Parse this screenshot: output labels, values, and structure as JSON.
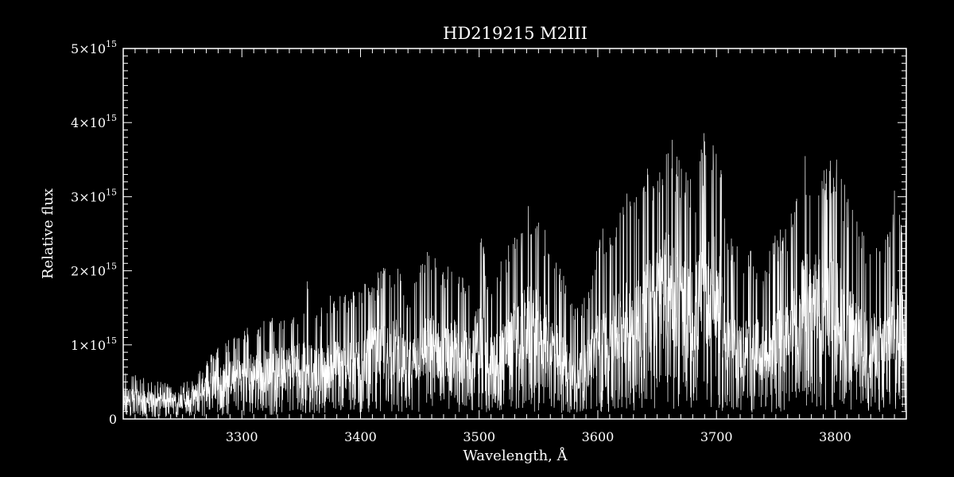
{
  "chart_data": {
    "type": "line",
    "title": "HD219215   M2III",
    "xlabel": "Wavelength, Å",
    "ylabel": "Relative flux",
    "xlim": [
      3200,
      3860
    ],
    "ylim": [
      0,
      5000000000000000.0
    ],
    "x_ticks": [
      {
        "value": 3300,
        "label": "3300"
      },
      {
        "value": 3400,
        "label": "3400"
      },
      {
        "value": 3500,
        "label": "3500"
      },
      {
        "value": 3600,
        "label": "3600"
      },
      {
        "value": 3700,
        "label": "3700"
      },
      {
        "value": 3800,
        "label": "3800"
      }
    ],
    "y_ticks": [
      {
        "value": 0,
        "mantissa": "0",
        "exponent": ""
      },
      {
        "value": 1000000000000000.0,
        "mantissa": "1×10",
        "exponent": "15"
      },
      {
        "value": 2000000000000000.0,
        "mantissa": "2×10",
        "exponent": "15"
      },
      {
        "value": 3000000000000000.0,
        "mantissa": "3×10",
        "exponent": "15"
      },
      {
        "value": 4000000000000000.0,
        "mantissa": "4×10",
        "exponent": "15"
      },
      {
        "value": 5000000000000000.0,
        "mantissa": "5×10",
        "exponent": "15"
      }
    ],
    "x_minor_step": 10,
    "y_minor_step": 100000000000000.0,
    "grid": false,
    "colors": {
      "background": "#000000",
      "foreground": "#ffffff"
    },
    "series": [
      {
        "envelope": {
          "x": [
            3200,
            3210,
            3220,
            3230,
            3240,
            3250,
            3260,
            3270,
            3280,
            3290,
            3300,
            3310,
            3320,
            3330,
            3340,
            3350,
            3355,
            3360,
            3370,
            3380,
            3390,
            3400,
            3410,
            3420,
            3430,
            3440,
            3450,
            3460,
            3470,
            3480,
            3490,
            3500,
            3510,
            3520,
            3530,
            3540,
            3550,
            3560,
            3570,
            3580,
            3590,
            3600,
            3610,
            3620,
            3630,
            3640,
            3650,
            3660,
            3670,
            3680,
            3690,
            3700,
            3710,
            3720,
            3730,
            3740,
            3750,
            3760,
            3770,
            3780,
            3790,
            3800,
            3810,
            3820,
            3830,
            3840,
            3850,
            3860
          ],
          "upper": [
            700000000000000.0,
            600000000000000.0,
            550000000000000.0,
            500000000000000.0,
            500000000000000.0,
            500000000000000.0,
            600000000000000.0,
            800000000000000.0,
            1000000000000000.0,
            1100000000000000.0,
            1200000000000000.0,
            1300000000000000.0,
            1350000000000000.0,
            1400000000000000.0,
            1450000000000000.0,
            1600000000000000.0,
            1900000000000000.0,
            1400000000000000.0,
            1600000000000000.0,
            1750000000000000.0,
            1700000000000000.0,
            1850000000000000.0,
            1900000000000000.0,
            2100000000000000.0,
            2200000000000000.0,
            1600000000000000.0,
            2100000000000000.0,
            2400000000000000.0,
            2000000000000000.0,
            2300000000000000.0,
            1800000000000000.0,
            2600000000000000.0,
            1900000000000000.0,
            2200000000000000.0,
            2600000000000000.0,
            2900000000000000.0,
            2800000000000000.0,
            2500000000000000.0,
            2000000000000000.0,
            1500000000000000.0,
            1700000000000000.0,
            2500000000000000.0,
            2700000000000000.0,
            3000000000000000.0,
            3200000000000000.0,
            3400000000000000.0,
            3600000000000000.0,
            4000000000000000.0,
            3500000000000000.0,
            3200000000000000.0,
            3900000000000000.0,
            3900000000000000.0,
            2500000000000000.0,
            2300000000000000.0,
            2400000000000000.0,
            2100000000000000.0,
            2500000000000000.0,
            2700000000000000.0,
            3500000000000000.0,
            3700000000000000.0,
            3400000000000000.0,
            3600000000000000.0,
            3100000000000000.0,
            2600000000000000.0,
            2400000000000000.0,
            2300000000000000.0,
            3100000000000000.0,
            2800000000000000.0
          ],
          "mean": [
            300000000000000.0,
            280000000000000.0,
            260000000000000.0,
            250000000000000.0,
            250000000000000.0,
            260000000000000.0,
            320000000000000.0,
            420000000000000.0,
            500000000000000.0,
            550000000000000.0,
            600000000000000.0,
            630000000000000.0,
            650000000000000.0,
            670000000000000.0,
            700000000000000.0,
            750000000000000.0,
            800000000000000.0,
            650000000000000.0,
            700000000000000.0,
            750000000000000.0,
            700000000000000.0,
            800000000000000.0,
            850000000000000.0,
            900000000000000.0,
            950000000000000.0,
            700000000000000.0,
            900000000000000.0,
            1000000000000000.0,
            850000000000000.0,
            950000000000000.0,
            800000000000000.0,
            1100000000000000.0,
            800000000000000.0,
            900000000000000.0,
            1100000000000000.0,
            1250000000000000.0,
            1200000000000000.0,
            1000000000000000.0,
            800000000000000.0,
            600000000000000.0,
            700000000000000.0,
            1000000000000000.0,
            1100000000000000.0,
            1250000000000000.0,
            1350000000000000.0,
            1500000000000000.0,
            1600000000000000.0,
            1800000000000000.0,
            1500000000000000.0,
            1400000000000000.0,
            1700000000000000.0,
            1700000000000000.0,
            1000000000000000.0,
            900000000000000.0,
            1000000000000000.0,
            850000000000000.0,
            1000000000000000.0,
            1100000000000000.0,
            1500000000000000.0,
            1600000000000000.0,
            1450000000000000.0,
            1550000000000000.0,
            1300000000000000.0,
            1050000000000000.0,
            1000000000000000.0,
            950000000000000.0,
            1300000000000000.0,
            1200000000000000.0
          ]
        }
      }
    ]
  }
}
